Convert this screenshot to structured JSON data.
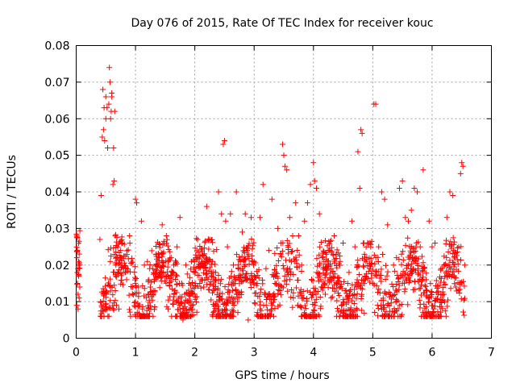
{
  "chart_data": {
    "type": "scatter",
    "title": "Day 076 of 2015, Rate Of TEC Index for receiver kouc",
    "xlabel": "GPS time / hours",
    "ylabel": "ROTI / TECUs",
    "xlim": [
      0,
      7
    ],
    "ylim": [
      0,
      0.08
    ],
    "xticks": [
      "0",
      "1",
      "2",
      "3",
      "4",
      "5",
      "6",
      "7"
    ],
    "yticks": [
      "0",
      "0.01",
      "0.02",
      "0.03",
      "0.04",
      "0.05",
      "0.06",
      "0.07",
      "0.08"
    ],
    "grid": true,
    "marker": "plus",
    "color": "#ff0000",
    "series": [
      {
        "name": "ROTI",
        "x": [
          0.01,
          0.01,
          0.02,
          0.02,
          0.03,
          0.03,
          0.03,
          0.04,
          0.04,
          0.05,
          0.05,
          0.06,
          0.06,
          0.4,
          0.42,
          0.44,
          0.45,
          0.46,
          0.47,
          0.48,
          0.5,
          0.5,
          0.52,
          0.53,
          0.55,
          0.56,
          0.57,
          0.58,
          0.59,
          0.6,
          0.6,
          0.62,
          0.63,
          0.64,
          0.65,
          0.66,
          0.66,
          0.67,
          0.68,
          0.7,
          0.7,
          0.72,
          0.75,
          0.78,
          0.8,
          0.85,
          0.9,
          0.95,
          1.0,
          1.02,
          1.05,
          1.1,
          1.15,
          1.2,
          1.25,
          1.3,
          1.35,
          1.4,
          1.45,
          1.5,
          1.52,
          1.55,
          1.6,
          1.65,
          1.7,
          1.75,
          1.8,
          1.85,
          1.9,
          1.95,
          2.0,
          2.05,
          2.1,
          2.15,
          2.2,
          2.25,
          2.3,
          2.35,
          2.4,
          2.45,
          2.48,
          2.5,
          2.52,
          2.55,
          2.6,
          2.65,
          2.7,
          2.75,
          2.8,
          2.85,
          2.9,
          2.95,
          3.0,
          3.05,
          3.1,
          3.15,
          3.2,
          3.25,
          3.3,
          3.35,
          3.4,
          3.45,
          3.48,
          3.5,
          3.52,
          3.55,
          3.6,
          3.65,
          3.7,
          3.75,
          3.8,
          3.85,
          3.9,
          3.95,
          4.0,
          4.02,
          4.05,
          4.1,
          4.15,
          4.2,
          4.25,
          4.3,
          4.35,
          4.4,
          4.45,
          4.5,
          4.55,
          4.6,
          4.65,
          4.7,
          4.75,
          4.78,
          4.8,
          4.82,
          4.85,
          4.9,
          4.95,
          5.0,
          5.02,
          5.05,
          5.08,
          5.1,
          5.15,
          5.2,
          5.25,
          5.3,
          5.35,
          5.4,
          5.45,
          5.5,
          5.55,
          5.6,
          5.65,
          5.7,
          5.75,
          5.8,
          5.85,
          5.9,
          5.95,
          6.0,
          6.05,
          6.1,
          6.15,
          6.2,
          6.25,
          6.3,
          6.35,
          6.4,
          6.45,
          6.48,
          6.5,
          6.52,
          6.55
        ],
        "y": [
          0.022,
          0.009,
          0.024,
          0.015,
          0.012,
          0.019,
          0.008,
          0.021,
          0.017,
          0.011,
          0.023,
          0.014,
          0.02,
          0.027,
          0.039,
          0.055,
          0.068,
          0.057,
          0.063,
          0.054,
          0.06,
          0.066,
          0.063,
          0.052,
          0.064,
          0.074,
          0.07,
          0.06,
          0.062,
          0.067,
          0.066,
          0.042,
          0.052,
          0.043,
          0.062,
          0.013,
          0.028,
          0.02,
          0.009,
          0.018,
          0.025,
          0.008,
          0.024,
          0.026,
          0.019,
          0.016,
          0.028,
          0.014,
          0.038,
          0.037,
          0.014,
          0.032,
          0.02,
          0.021,
          0.014,
          0.012,
          0.023,
          0.017,
          0.031,
          0.017,
          0.028,
          0.008,
          0.022,
          0.012,
          0.025,
          0.033,
          0.005,
          0.02,
          0.015,
          0.009,
          0.018,
          0.022,
          0.016,
          0.014,
          0.036,
          0.027,
          0.021,
          0.018,
          0.04,
          0.034,
          0.053,
          0.054,
          0.032,
          0.025,
          0.034,
          0.02,
          0.04,
          0.016,
          0.029,
          0.034,
          0.005,
          0.033,
          0.021,
          0.015,
          0.033,
          0.042,
          0.019,
          0.024,
          0.038,
          0.015,
          0.03,
          0.026,
          0.053,
          0.05,
          0.047,
          0.046,
          0.033,
          0.028,
          0.037,
          0.028,
          0.02,
          0.032,
          0.037,
          0.042,
          0.048,
          0.043,
          0.041,
          0.034,
          0.022,
          0.012,
          0.024,
          0.011,
          0.028,
          0.015,
          0.021,
          0.026,
          0.013,
          0.018,
          0.032,
          0.025,
          0.051,
          0.041,
          0.057,
          0.056,
          0.026,
          0.022,
          0.019,
          0.015,
          0.064,
          0.064,
          0.009,
          0.025,
          0.04,
          0.038,
          0.031,
          0.012,
          0.02,
          0.022,
          0.041,
          0.043,
          0.033,
          0.032,
          0.035,
          0.041,
          0.04,
          0.025,
          0.046,
          0.016,
          0.032,
          0.025,
          0.026,
          0.012,
          0.019,
          0.02,
          0.033,
          0.04,
          0.039,
          0.014,
          0.025,
          0.045,
          0.048,
          0.047,
          0.02
        ]
      }
    ]
  }
}
